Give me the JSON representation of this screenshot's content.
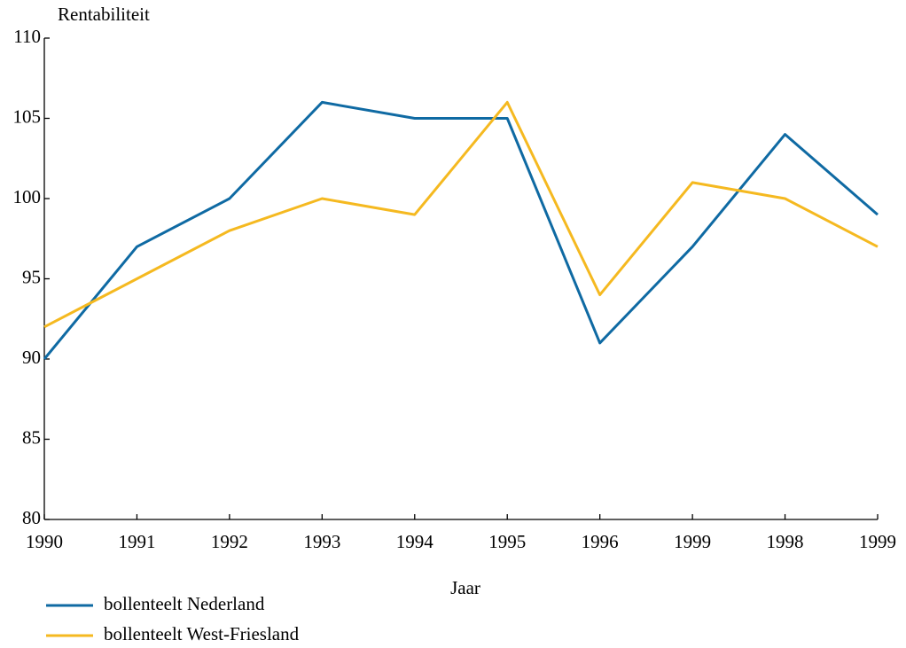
{
  "chart_data": {
    "type": "line",
    "title": "Rentabiliteit",
    "x_label": "Jaar",
    "categories": [
      "1990",
      "1991",
      "1992",
      "1993",
      "1994",
      "1995",
      "1996",
      "1999",
      "1998",
      "1999"
    ],
    "series": [
      {
        "name": "bollenteelt Nederland",
        "color": "#0f6aa3",
        "values": [
          90,
          97,
          100,
          106,
          105,
          105,
          91,
          97,
          104,
          99
        ]
      },
      {
        "name": "bollenteelt West-Friesland",
        "color": "#f5b920",
        "values": [
          92,
          95,
          98,
          100,
          99,
          106,
          94,
          101,
          100,
          97
        ]
      }
    ],
    "ylim": [
      80,
      110
    ],
    "yticks": [
      80,
      85,
      90,
      95,
      100,
      105,
      110
    ],
    "grid": false
  }
}
